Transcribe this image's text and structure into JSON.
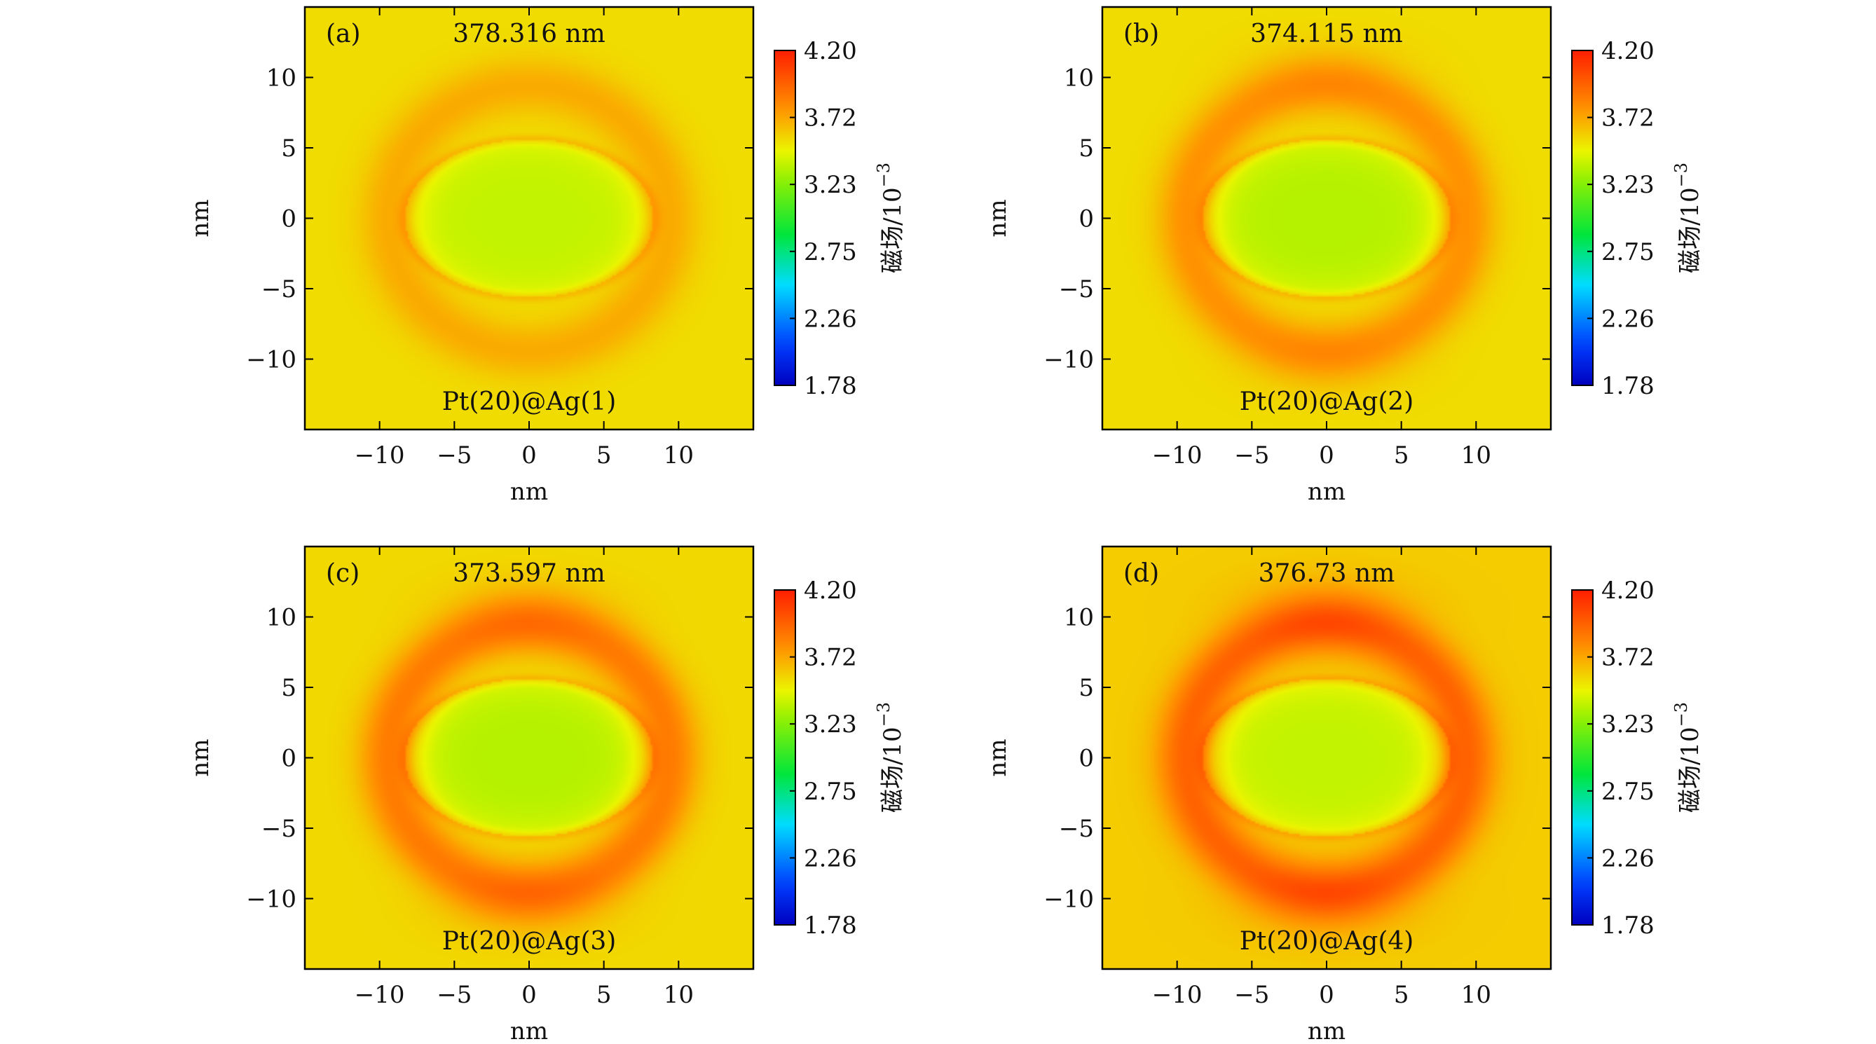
{
  "figure": {
    "panel_count": 4
  },
  "chart_data": [
    {
      "type": "heatmap",
      "panel": "(a)",
      "title": "378.316 nm",
      "annotation": "Pt(20)@Ag(1)",
      "xlabel": "nm",
      "ylabel": "nm",
      "xlim": [
        -15,
        15
      ],
      "ylim": [
        -15,
        15
      ],
      "xticks": [
        -10,
        -5,
        0,
        5,
        10
      ],
      "yticks": [
        -10,
        -5,
        0,
        5,
        10
      ],
      "xtick_labels": [
        "−10",
        "−5",
        "0",
        "5",
        "10"
      ],
      "ytick_labels": [
        "−10",
        "−5",
        "0",
        "5",
        "10"
      ],
      "colorbar": {
        "label": "磁场/10",
        "exponent": "−3",
        "range": [
          1.78,
          4.2
        ],
        "ticks": [
          "4.20",
          "3.72",
          "3.23",
          "2.75",
          "2.26",
          "1.78"
        ]
      },
      "field": {
        "background": 3.55,
        "core_min": 3.38,
        "ring_peak": 3.7,
        "top_lobe": 0.0,
        "bottom_lobe": 0.0
      }
    },
    {
      "type": "heatmap",
      "panel": "(b)",
      "title": "374.115 nm",
      "annotation": "Pt(20)@Ag(2)",
      "xlabel": "nm",
      "ylabel": "nm",
      "xlim": [
        -15,
        15
      ],
      "ylim": [
        -15,
        15
      ],
      "xticks": [
        -10,
        -5,
        0,
        5,
        10
      ],
      "yticks": [
        -10,
        -5,
        0,
        5,
        10
      ],
      "xtick_labels": [
        "−10",
        "−5",
        "0",
        "5",
        "10"
      ],
      "ytick_labels": [
        "−10",
        "−5",
        "0",
        "5",
        "10"
      ],
      "colorbar": {
        "label": "磁场/10",
        "exponent": "−3",
        "range": [
          1.78,
          4.2
        ],
        "ticks": [
          "4.20",
          "3.72",
          "3.23",
          "2.75",
          "2.26",
          "1.78"
        ]
      },
      "field": {
        "background": 3.55,
        "core_min": 3.35,
        "ring_peak": 3.78,
        "top_lobe": 0.05,
        "bottom_lobe": 0.05
      }
    },
    {
      "type": "heatmap",
      "panel": "(c)",
      "title": "373.597 nm",
      "annotation": "Pt(20)@Ag(3)",
      "xlabel": "nm",
      "ylabel": "nm",
      "xlim": [
        -15,
        15
      ],
      "ylim": [
        -15,
        15
      ],
      "xticks": [
        -10,
        -5,
        0,
        5,
        10
      ],
      "yticks": [
        -10,
        -5,
        0,
        5,
        10
      ],
      "xtick_labels": [
        "−10",
        "−5",
        "0",
        "5",
        "10"
      ],
      "ytick_labels": [
        "−10",
        "−5",
        "0",
        "5",
        "10"
      ],
      "colorbar": {
        "label": "磁场/10",
        "exponent": "−3",
        "range": [
          1.78,
          4.2
        ],
        "ticks": [
          "4.20",
          "3.72",
          "3.23",
          "2.75",
          "2.26",
          "1.78"
        ]
      },
      "field": {
        "background": 3.56,
        "core_min": 3.35,
        "ring_peak": 3.86,
        "top_lobe": 0.08,
        "bottom_lobe": 0.1
      }
    },
    {
      "type": "heatmap",
      "panel": "(d)",
      "title": "376.73 nm",
      "annotation": "Pt(20)@Ag(4)",
      "xlabel": "nm",
      "ylabel": "nm",
      "xlim": [
        -15,
        15
      ],
      "ylim": [
        -15,
        15
      ],
      "xticks": [
        -10,
        -5,
        0,
        5,
        10
      ],
      "yticks": [
        -10,
        -5,
        0,
        5,
        10
      ],
      "xtick_labels": [
        "−10",
        "−5",
        "0",
        "5",
        "10"
      ],
      "ytick_labels": [
        "−10",
        "−5",
        "0",
        "5",
        "10"
      ],
      "colorbar": {
        "label": "磁场/10",
        "exponent": "−3",
        "range": [
          1.78,
          4.2
        ],
        "ticks": [
          "4.20",
          "3.72",
          "3.23",
          "2.75",
          "2.26",
          "1.78"
        ]
      },
      "field": {
        "background": 3.6,
        "core_min": 3.38,
        "ring_peak": 3.95,
        "top_lobe": 0.12,
        "bottom_lobe": 0.12
      }
    }
  ]
}
